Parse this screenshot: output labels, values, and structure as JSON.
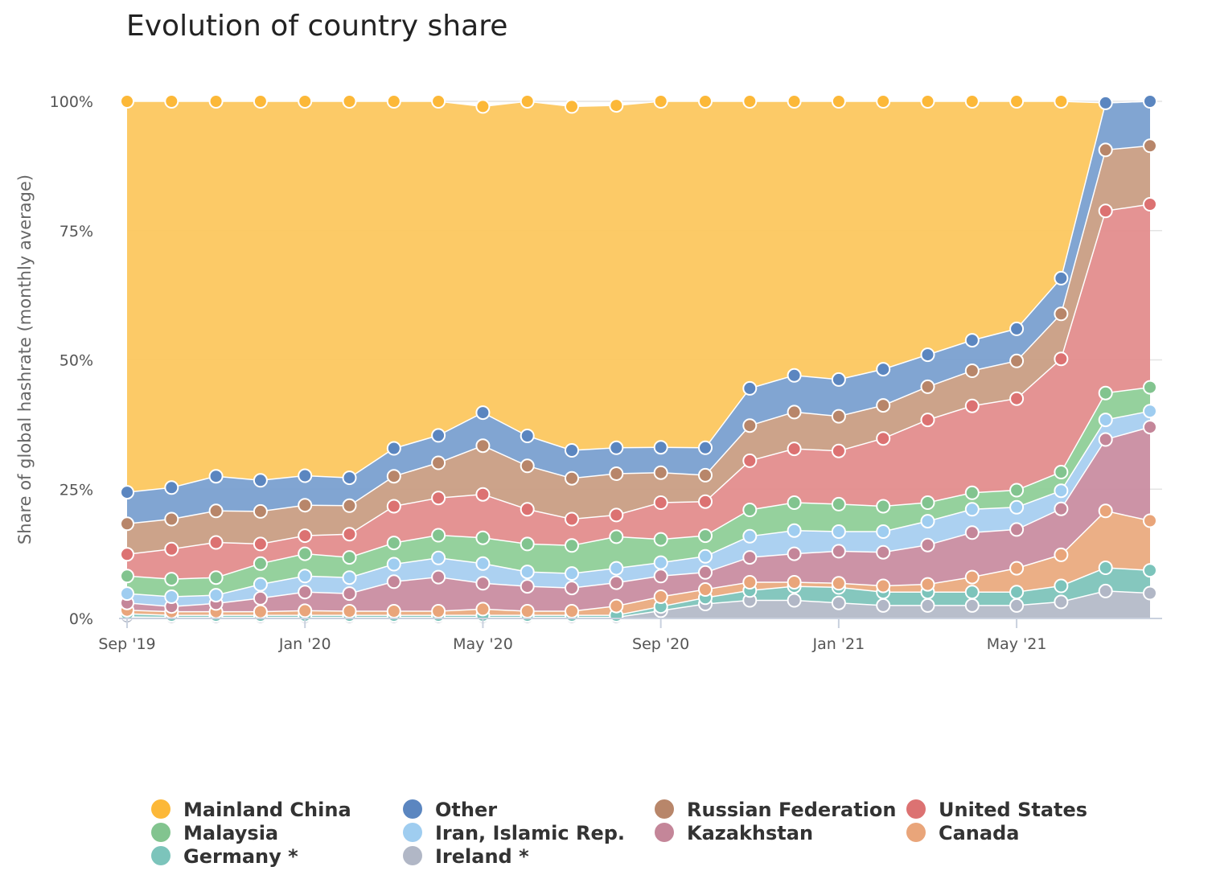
{
  "chart_data": {
    "type": "area",
    "stacked": true,
    "title": "Evolution of country share",
    "ylabel": "Share of global hashrate (monthly average)",
    "xlabel": "",
    "ylim": [
      0,
      100
    ],
    "y_ticks": [
      "0%",
      "25%",
      "50%",
      "75%",
      "100%"
    ],
    "x_tick_labels": [
      {
        "label": "Sep '19",
        "index": 0
      },
      {
        "label": "Jan '20",
        "index": 4
      },
      {
        "label": "May '20",
        "index": 8
      },
      {
        "label": "Sep '20",
        "index": 12
      },
      {
        "label": "Jan '21",
        "index": 16
      },
      {
        "label": "May '21",
        "index": 20
      }
    ],
    "x": [
      "2019-09",
      "2019-10",
      "2019-11",
      "2019-12",
      "2020-01",
      "2020-02",
      "2020-03",
      "2020-04",
      "2020-05",
      "2020-06",
      "2020-07",
      "2020-08",
      "2020-09",
      "2020-10",
      "2020-11",
      "2020-12",
      "2021-01",
      "2021-02",
      "2021-03",
      "2021-04",
      "2021-05",
      "2021-06",
      "2021-07",
      "2021-08"
    ],
    "series": [
      {
        "name": "Ireland *",
        "color": "#b4bac8",
        "values": [
          0.3,
          0.2,
          0.2,
          0.2,
          0.2,
          0.2,
          0.2,
          0.2,
          0.2,
          0.2,
          0.2,
          0.2,
          1.5,
          2.8,
          3.5,
          3.5,
          3.0,
          2.5,
          2.5,
          2.5,
          2.5,
          3.2,
          5.3,
          4.9
        ]
      },
      {
        "name": "Germany *",
        "color": "#7ec4bb",
        "values": [
          0.6,
          0.4,
          0.4,
          0.4,
          0.4,
          0.4,
          0.4,
          0.4,
          0.4,
          0.4,
          0.4,
          0.4,
          0.8,
          1.2,
          1.9,
          2.7,
          3.0,
          2.6,
          2.6,
          2.6,
          2.6,
          3.1,
          4.5,
          4.4
        ]
      },
      {
        "name": "Canada",
        "color": "#eaab80",
        "values": [
          0.7,
          0.7,
          0.7,
          0.7,
          0.9,
          0.8,
          0.8,
          0.8,
          1.2,
          0.8,
          0.8,
          1.8,
          1.9,
          1.6,
          1.6,
          0.8,
          0.8,
          1.2,
          1.5,
          2.9,
          4.6,
          6.0,
          11.0,
          9.6
        ]
      },
      {
        "name": "Kazakhstan",
        "color": "#c98da1",
        "values": [
          1.4,
          1.0,
          1.6,
          2.6,
          3.6,
          3.4,
          5.7,
          6.6,
          5.0,
          4.8,
          4.5,
          4.5,
          4.0,
          3.3,
          4.8,
          5.5,
          6.2,
          6.5,
          7.6,
          8.6,
          7.5,
          8.9,
          13.8,
          18.1
        ]
      },
      {
        "name": "Iran, Islamic Rep.",
        "color": "#a8cff0",
        "values": [
          1.8,
          1.9,
          1.6,
          2.7,
          3.1,
          3.1,
          3.4,
          3.7,
          3.8,
          2.8,
          2.8,
          2.8,
          2.6,
          3.1,
          4.1,
          4.5,
          3.8,
          4.0,
          4.6,
          4.5,
          4.3,
          3.5,
          3.8,
          3.1
        ]
      },
      {
        "name": "Malaysia",
        "color": "#8fcf98",
        "values": [
          3.4,
          3.4,
          3.4,
          4.0,
          4.3,
          3.9,
          4.1,
          4.4,
          5.0,
          5.4,
          5.4,
          6.1,
          4.5,
          4.0,
          5.1,
          5.4,
          5.3,
          4.9,
          3.6,
          3.2,
          3.3,
          3.6,
          5.2,
          4.6
        ]
      },
      {
        "name": "United States",
        "color": "#e38d8d",
        "values": [
          4.2,
          5.8,
          6.8,
          3.8,
          3.5,
          4.5,
          7.1,
          7.2,
          8.4,
          6.7,
          5.1,
          4.2,
          7.1,
          6.6,
          9.5,
          10.4,
          10.3,
          13.1,
          16.0,
          16.8,
          17.7,
          21.9,
          35.2,
          35.4
        ]
      },
      {
        "name": "Russian Federation",
        "color": "#c99e84",
        "values": [
          5.9,
          5.8,
          6.1,
          6.3,
          5.9,
          5.5,
          5.8,
          6.8,
          9.4,
          8.4,
          7.9,
          8.0,
          5.8,
          5.1,
          6.8,
          7.1,
          6.7,
          6.4,
          6.4,
          6.8,
          7.3,
          8.7,
          11.8,
          11.3
        ]
      },
      {
        "name": "Other",
        "color": "#7aa0d0",
        "values": [
          6.1,
          6.1,
          6.7,
          6.0,
          5.7,
          5.4,
          5.4,
          5.3,
          6.4,
          5.8,
          5.4,
          5.0,
          4.9,
          5.3,
          7.2,
          7.1,
          7.1,
          7.0,
          6.2,
          5.9,
          6.2,
          6.9,
          9.1,
          8.6
        ]
      },
      {
        "name": "Mainland China",
        "color": "#fcc75f",
        "values": [
          75.6,
          74.7,
          72.5,
          73.3,
          72.4,
          72.8,
          67.1,
          64.6,
          59.2,
          64.7,
          66.5,
          66.2,
          66.9,
          67.0,
          55.5,
          53.0,
          53.8,
          51.8,
          49.0,
          46.2,
          44.0,
          34.2,
          0.0,
          0.0
        ]
      }
    ],
    "legend": {
      "placement": "bottom",
      "entries": [
        {
          "label": "Mainland China",
          "color": "#fcb838"
        },
        {
          "label": "Other",
          "color": "#5b86c0"
        },
        {
          "label": "Russian Federation",
          "color": "#b8866a"
        },
        {
          "label": "United States",
          "color": "#dc7272"
        },
        {
          "label": "Malaysia",
          "color": "#82c48f"
        },
        {
          "label": "Iran, Islamic Rep.",
          "color": "#9fcdf0"
        },
        {
          "label": "Kazakhstan",
          "color": "#c48699"
        },
        {
          "label": "Canada",
          "color": "#e9a57a"
        },
        {
          "label": "Germany *",
          "color": "#7cc4bb"
        },
        {
          "label": "Ireland *",
          "color": "#b1b7c6"
        }
      ]
    },
    "grid": true
  }
}
